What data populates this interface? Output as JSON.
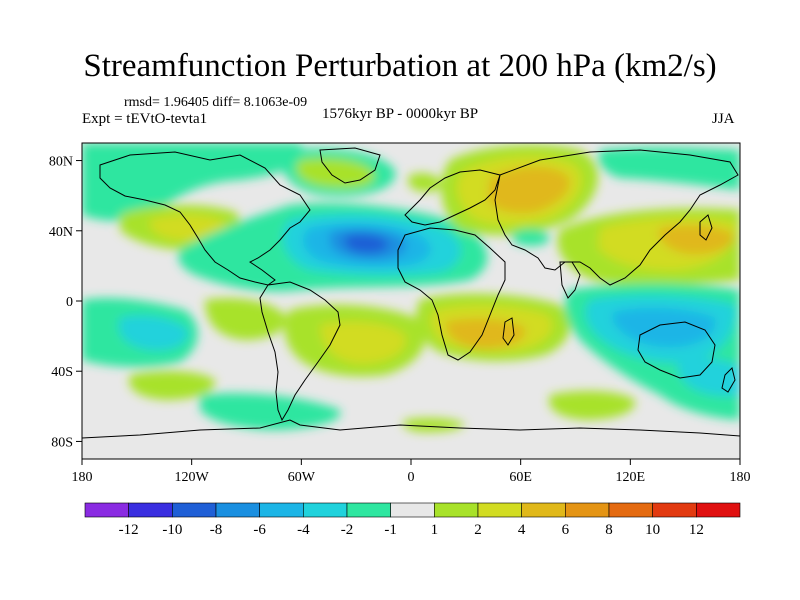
{
  "title": "Streamfunction Perturbation at 200 hPa (km2/s)",
  "stats": "rmsd= 1.96405 diff= 8.1063e-09",
  "expt": "Expt = tEVtO-tevta1",
  "period": "1576kyr BP - 0000kyr BP",
  "season": "JJA",
  "lat_labels": [
    "80N",
    "40N",
    "0",
    "40S",
    "80S"
  ],
  "lon_labels": [
    "180",
    "120W",
    "60W",
    "0",
    "60E",
    "120E",
    "180"
  ],
  "colorbar": {
    "labels": [
      "-12",
      "-10",
      "-8",
      "-6",
      "-4",
      "-2",
      "-1",
      "1",
      "2",
      "4",
      "6",
      "8",
      "10",
      "12"
    ],
    "colors": [
      "#8a2be2",
      "#3a2ee0",
      "#1f5fd6",
      "#1a8fe0",
      "#1cb5e6",
      "#20d2dc",
      "#2ee6a0",
      "#e8e8e8",
      "#a8e22a",
      "#d2dc22",
      "#e0b81a",
      "#e49414",
      "#e46a10",
      "#e23a10",
      "#e01010"
    ]
  },
  "colors": {
    "land_outline": "#000000",
    "background": "#e8e8e8"
  }
}
